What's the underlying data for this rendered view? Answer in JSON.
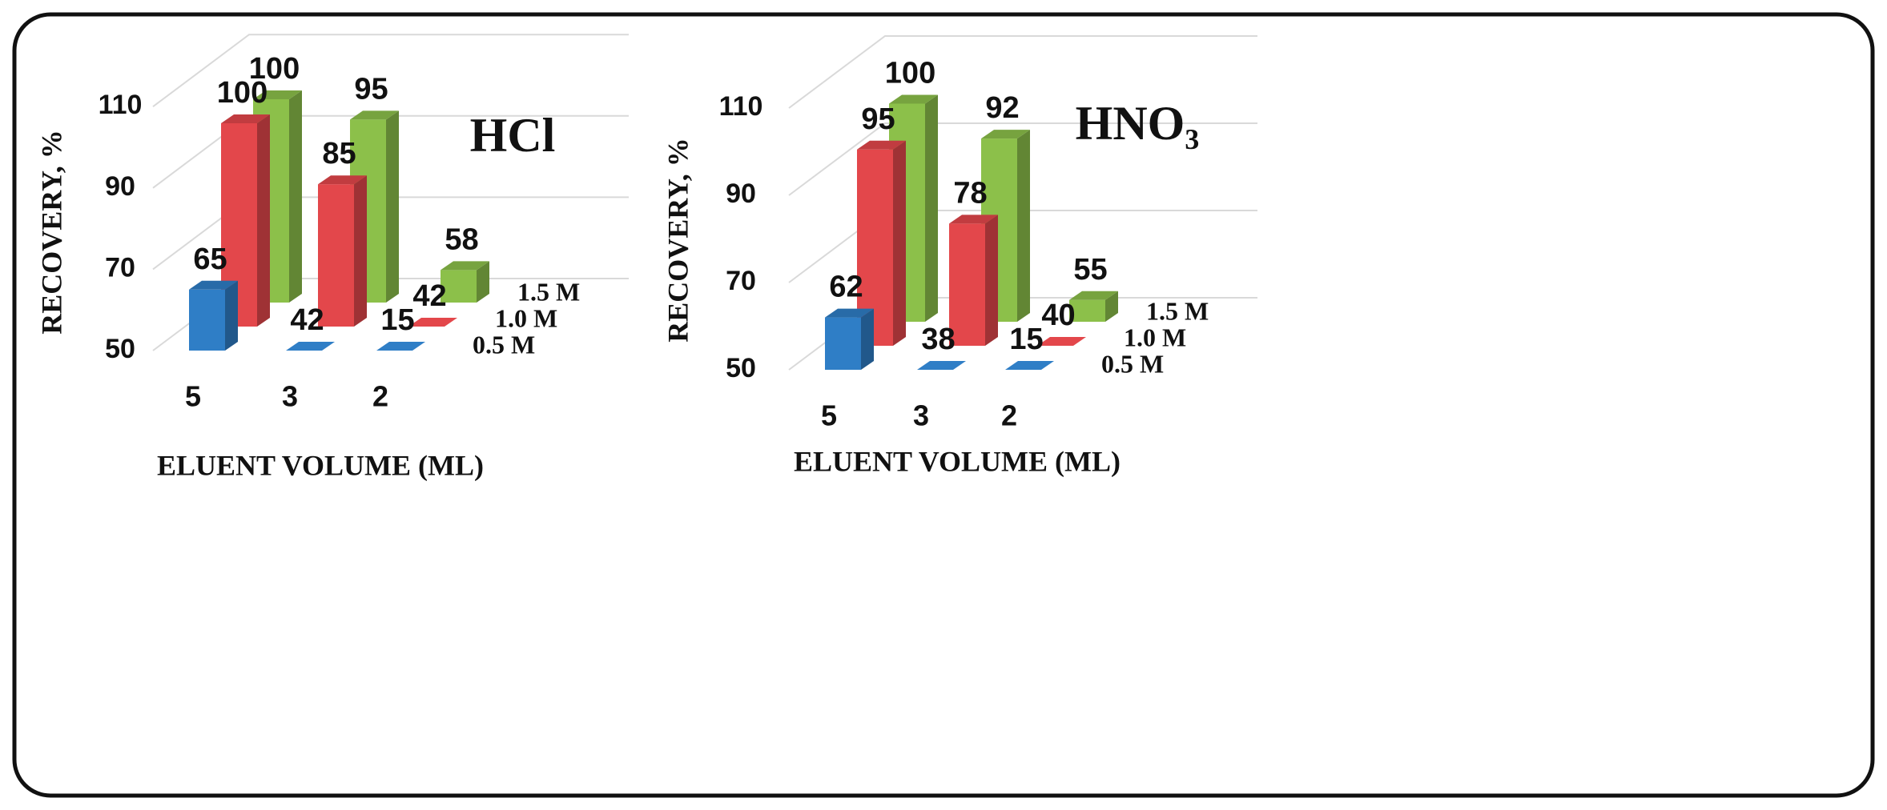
{
  "chart_data": [
    {
      "type": "bar3d",
      "title": "HCl",
      "categories": [
        "5",
        "3",
        "2"
      ],
      "series": [
        {
          "name": "0.5 M",
          "color": "#2f7ec6",
          "values": [
            65,
            42,
            15
          ]
        },
        {
          "name": "1.0 M",
          "color": "#e3474b",
          "values": [
            100,
            85,
            42
          ]
        },
        {
          "name": "1.5 M",
          "color": "#8cc04a",
          "values": [
            100,
            95,
            58
          ]
        }
      ],
      "xlabel": "ELUENT VOLUME (ML)",
      "ylabel": "RECOVERY, %",
      "ylim": [
        50,
        110
      ],
      "yticks": [
        50,
        70,
        90,
        110
      ],
      "grid": true
    },
    {
      "type": "bar3d",
      "title": "HNO₃",
      "categories": [
        "5",
        "3",
        "2"
      ],
      "series": [
        {
          "name": "0.5 M",
          "color": "#2f7ec6",
          "values": [
            62,
            38,
            15
          ]
        },
        {
          "name": "1.0 M",
          "color": "#e3474b",
          "values": [
            95,
            78,
            40
          ]
        },
        {
          "name": "1.5 M",
          "color": "#8cc04a",
          "values": [
            100,
            92,
            55
          ]
        }
      ],
      "xlabel": "ELUENT VOLUME (ML)",
      "ylabel": "RECOVERY, %",
      "ylim": [
        50,
        110
      ],
      "yticks": [
        50,
        70,
        90,
        110
      ],
      "grid": true
    }
  ]
}
